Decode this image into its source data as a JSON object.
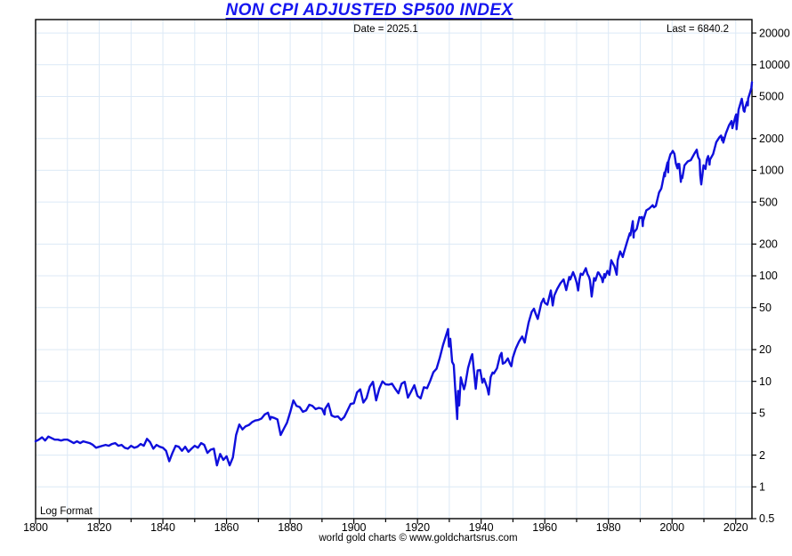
{
  "colors": {
    "line": "#0f0fdc",
    "title": "#1616f0",
    "grid": "#dce9f6",
    "axis": "#000000",
    "background": "#ffffff",
    "text": "#000000"
  },
  "chart_data": {
    "type": "line",
    "title": "NON CPI ADJUSTED SP500 INDEX",
    "date_label": "Date = 2025.1",
    "last_label": "Last = 6840.2",
    "scale_label": "Log Format",
    "caption": "world gold charts © www.goldchartsrus.com",
    "last_date": 2025.1,
    "last_value": 6840.2,
    "grid": true,
    "legend": false,
    "x_axis": {
      "range": [
        1800,
        2025.1
      ],
      "major_tick_interval": 20,
      "minor_tick_interval": 10,
      "major_ticks": [
        1800,
        1820,
        1840,
        1860,
        1880,
        1900,
        1920,
        1940,
        1960,
        1980,
        2000,
        2020
      ]
    },
    "y_axis": {
      "scale": "log",
      "range": [
        0.5,
        26800
      ],
      "ticks": [
        0.5,
        1,
        2,
        5,
        10,
        20,
        50,
        100,
        200,
        500,
        1000,
        2000,
        5000,
        10000,
        20000
      ]
    },
    "series": [
      {
        "name": "SP500",
        "color": "#0f0fdc",
        "points": [
          [
            1800,
            2.7
          ],
          [
            1801,
            2.8
          ],
          [
            1802,
            2.95
          ],
          [
            1803,
            2.75
          ],
          [
            1804,
            3.0
          ],
          [
            1805,
            2.9
          ],
          [
            1806,
            2.8
          ],
          [
            1807,
            2.8
          ],
          [
            1808,
            2.75
          ],
          [
            1809,
            2.8
          ],
          [
            1810,
            2.8
          ],
          [
            1811,
            2.7
          ],
          [
            1812,
            2.6
          ],
          [
            1813,
            2.7
          ],
          [
            1814,
            2.6
          ],
          [
            1815,
            2.7
          ],
          [
            1816,
            2.65
          ],
          [
            1817,
            2.6
          ],
          [
            1818,
            2.5
          ],
          [
            1819,
            2.35
          ],
          [
            1820,
            2.4
          ],
          [
            1821,
            2.45
          ],
          [
            1822,
            2.5
          ],
          [
            1823,
            2.45
          ],
          [
            1824,
            2.55
          ],
          [
            1825,
            2.6
          ],
          [
            1826,
            2.45
          ],
          [
            1827,
            2.5
          ],
          [
            1828,
            2.35
          ],
          [
            1829,
            2.3
          ],
          [
            1830,
            2.45
          ],
          [
            1831,
            2.35
          ],
          [
            1832,
            2.4
          ],
          [
            1833,
            2.55
          ],
          [
            1834,
            2.45
          ],
          [
            1835,
            2.85
          ],
          [
            1836,
            2.65
          ],
          [
            1837,
            2.3
          ],
          [
            1838,
            2.5
          ],
          [
            1839,
            2.4
          ],
          [
            1840,
            2.35
          ],
          [
            1841,
            2.2
          ],
          [
            1842,
            1.75
          ],
          [
            1843,
            2.1
          ],
          [
            1844,
            2.45
          ],
          [
            1845,
            2.4
          ],
          [
            1846,
            2.2
          ],
          [
            1847,
            2.4
          ],
          [
            1848,
            2.15
          ],
          [
            1849,
            2.3
          ],
          [
            1850,
            2.45
          ],
          [
            1851,
            2.35
          ],
          [
            1852,
            2.6
          ],
          [
            1853,
            2.5
          ],
          [
            1854,
            2.1
          ],
          [
            1855,
            2.25
          ],
          [
            1856,
            2.3
          ],
          [
            1857,
            1.6
          ],
          [
            1858,
            2.05
          ],
          [
            1859,
            1.8
          ],
          [
            1860,
            1.95
          ],
          [
            1861,
            1.6
          ],
          [
            1862,
            1.9
          ],
          [
            1863,
            3.1
          ],
          [
            1864,
            3.9
          ],
          [
            1865,
            3.5
          ],
          [
            1866,
            3.75
          ],
          [
            1867,
            3.85
          ],
          [
            1868,
            4.1
          ],
          [
            1869,
            4.25
          ],
          [
            1870,
            4.3
          ],
          [
            1871,
            4.45
          ],
          [
            1872,
            4.85
          ],
          [
            1873,
            5.05
          ],
          [
            1873.7,
            4.35
          ],
          [
            1874,
            4.6
          ],
          [
            1875,
            4.5
          ],
          [
            1876,
            4.35
          ],
          [
            1877,
            3.1
          ],
          [
            1878,
            3.55
          ],
          [
            1879,
            4.05
          ],
          [
            1880,
            5.1
          ],
          [
            1881,
            6.6
          ],
          [
            1882,
            5.85
          ],
          [
            1883,
            5.7
          ],
          [
            1884,
            5.15
          ],
          [
            1885,
            5.3
          ],
          [
            1886,
            6.0
          ],
          [
            1887,
            5.85
          ],
          [
            1888,
            5.45
          ],
          [
            1889,
            5.6
          ],
          [
            1890,
            5.5
          ],
          [
            1890.8,
            4.85
          ],
          [
            1891,
            5.5
          ],
          [
            1892,
            6.15
          ],
          [
            1893,
            4.75
          ],
          [
            1894,
            4.6
          ],
          [
            1895,
            4.65
          ],
          [
            1896,
            4.3
          ],
          [
            1897,
            4.6
          ],
          [
            1898,
            5.3
          ],
          [
            1899,
            6.1
          ],
          [
            1900,
            6.2
          ],
          [
            1901,
            7.85
          ],
          [
            1902,
            8.4
          ],
          [
            1903,
            6.3
          ],
          [
            1904,
            6.95
          ],
          [
            1905,
            8.9
          ],
          [
            1906,
            9.9
          ],
          [
            1907,
            6.6
          ],
          [
            1908,
            8.5
          ],
          [
            1909,
            10.0
          ],
          [
            1910,
            9.35
          ],
          [
            1911,
            9.3
          ],
          [
            1912,
            9.5
          ],
          [
            1913,
            8.5
          ],
          [
            1914,
            7.7
          ],
          [
            1915,
            9.5
          ],
          [
            1916,
            9.9
          ],
          [
            1917,
            7.0
          ],
          [
            1918,
            8.0
          ],
          [
            1919,
            9.2
          ],
          [
            1920,
            7.3
          ],
          [
            1921,
            6.9
          ],
          [
            1922,
            8.8
          ],
          [
            1923,
            8.6
          ],
          [
            1924,
            10.1
          ],
          [
            1925,
            12.2
          ],
          [
            1926,
            13.2
          ],
          [
            1927,
            16.7
          ],
          [
            1928,
            22.0
          ],
          [
            1929.6,
            31.3
          ],
          [
            1929.9,
            21.4
          ],
          [
            1930.3,
            25.3
          ],
          [
            1930.9,
            15.3
          ],
          [
            1931.4,
            14.3
          ],
          [
            1931.9,
            8.1
          ],
          [
            1932.5,
            4.4
          ],
          [
            1932.75,
            8.1
          ],
          [
            1933.1,
            5.9
          ],
          [
            1933.6,
            10.9
          ],
          [
            1934,
            9.8
          ],
          [
            1934.6,
            8.4
          ],
          [
            1935,
            9.3
          ],
          [
            1935.9,
            13.4
          ],
          [
            1936.9,
            17.2
          ],
          [
            1937.2,
            18.1
          ],
          [
            1938.3,
            8.5
          ],
          [
            1938.9,
            12.7
          ],
          [
            1939.7,
            12.8
          ],
          [
            1940.4,
            9.7
          ],
          [
            1940.9,
            10.6
          ],
          [
            1941.9,
            8.7
          ],
          [
            1942.4,
            7.5
          ],
          [
            1943,
            11.0
          ],
          [
            1943.6,
            12.1
          ],
          [
            1944,
            11.9
          ],
          [
            1945,
            13.3
          ],
          [
            1945.9,
            17.4
          ],
          [
            1946.4,
            18.6
          ],
          [
            1946.8,
            14.7
          ],
          [
            1947.5,
            15.1
          ],
          [
            1948.4,
            16.5
          ],
          [
            1949,
            14.8
          ],
          [
            1949.5,
            13.9
          ],
          [
            1950,
            16.9
          ],
          [
            1950.9,
            20.4
          ],
          [
            1951.9,
            23.8
          ],
          [
            1952.9,
            26.6
          ],
          [
            1953.7,
            23.3
          ],
          [
            1954,
            26.1
          ],
          [
            1954.9,
            36.0
          ],
          [
            1955.9,
            45.5
          ],
          [
            1956.6,
            48.8
          ],
          [
            1957,
            44.7
          ],
          [
            1957.8,
            39.0
          ],
          [
            1958.9,
            55.2
          ],
          [
            1959.6,
            60.7
          ],
          [
            1960,
            55.6
          ],
          [
            1960.8,
            53.3
          ],
          [
            1961.9,
            72.6
          ],
          [
            1962.5,
            52.3
          ],
          [
            1963,
            65.1
          ],
          [
            1963.9,
            75.0
          ],
          [
            1964.9,
            84.8
          ],
          [
            1965.9,
            92.4
          ],
          [
            1966.75,
            73.2
          ],
          [
            1967.7,
            97.6
          ],
          [
            1968,
            92.2
          ],
          [
            1968.9,
            108.4
          ],
          [
            1969.5,
            97.0
          ],
          [
            1970,
            86.2
          ],
          [
            1970.5,
            72.7
          ],
          [
            1970.9,
            92.2
          ],
          [
            1971.3,
            104.8
          ],
          [
            1971.9,
            102.1
          ],
          [
            1972.9,
            118.1
          ],
          [
            1973.4,
            104.3
          ],
          [
            1973.9,
            97.6
          ],
          [
            1974.2,
            90.3
          ],
          [
            1974.75,
            63.5
          ],
          [
            1975.5,
            95.2
          ],
          [
            1975.9,
            90.2
          ],
          [
            1976.7,
            107.8
          ],
          [
            1976.9,
            107.5
          ],
          [
            1977.9,
            95.1
          ],
          [
            1978.2,
            87.0
          ],
          [
            1978.7,
            103.9
          ],
          [
            1978.9,
            96.1
          ],
          [
            1979.7,
            111.3
          ],
          [
            1979.9,
            107.9
          ],
          [
            1980.3,
            102.1
          ],
          [
            1980.9,
            140.5
          ],
          [
            1981.9,
            122.6
          ],
          [
            1982.6,
            102.4
          ],
          [
            1982.9,
            140.6
          ],
          [
            1983.7,
            170.4
          ],
          [
            1983.9,
            164.9
          ],
          [
            1984.5,
            150.6
          ],
          [
            1984.9,
            167.2
          ],
          [
            1985.9,
            211.3
          ],
          [
            1986.7,
            252.9
          ],
          [
            1986.9,
            242.2
          ],
          [
            1987.65,
            329.8
          ],
          [
            1987.9,
            230.3
          ],
          [
            1988,
            257.1
          ],
          [
            1988.9,
            277.7
          ],
          [
            1989.75,
            359.8
          ],
          [
            1989.9,
            353.4
          ],
          [
            1990.55,
            361.2
          ],
          [
            1990.8,
            295.5
          ],
          [
            1990.9,
            330.2
          ],
          [
            1991.9,
            417.1
          ],
          [
            1992.9,
            435.7
          ],
          [
            1993.9,
            466.5
          ],
          [
            1994.3,
            445.8
          ],
          [
            1994.9,
            459.3
          ],
          [
            1995.9,
            615.9
          ],
          [
            1996.6,
            670.6
          ],
          [
            1996.9,
            740.7
          ],
          [
            1997.6,
            954.3
          ],
          [
            1997.75,
            876.0
          ],
          [
            1997.9,
            970.4
          ],
          [
            1998.55,
            1186.8
          ],
          [
            1998.75,
            957.3
          ],
          [
            1998.9,
            1229.2
          ],
          [
            1999.5,
            1418.8
          ],
          [
            1999.9,
            1469.3
          ],
          [
            2000.2,
            1527.5
          ],
          [
            2000.75,
            1430.8
          ],
          [
            2000.9,
            1320.3
          ],
          [
            2001.2,
            1160.3
          ],
          [
            2001.7,
            1040.9
          ],
          [
            2001.9,
            1148.1
          ],
          [
            2002.25,
            1147.4
          ],
          [
            2002.75,
            776.8
          ],
          [
            2002.9,
            879.8
          ],
          [
            2003.2,
            841.2
          ],
          [
            2003.9,
            1111.9
          ],
          [
            2004.9,
            1211.9
          ],
          [
            2005.9,
            1248.3
          ],
          [
            2006.9,
            1418.3
          ],
          [
            2007.75,
            1565.2
          ],
          [
            2007.9,
            1468.4
          ],
          [
            2008.2,
            1330.6
          ],
          [
            2008.65,
            1255.1
          ],
          [
            2008.85,
            896.2
          ],
          [
            2009.15,
            735.1
          ],
          [
            2009.9,
            1115.1
          ],
          [
            2010.5,
            1030.7
          ],
          [
            2010.9,
            1257.6
          ],
          [
            2011.35,
            1363.6
          ],
          [
            2011.75,
            1131.4
          ],
          [
            2011.9,
            1257.6
          ],
          [
            2012.9,
            1426.2
          ],
          [
            2013.9,
            1848.4
          ],
          [
            2014.9,
            2058.9
          ],
          [
            2015.4,
            2130.8
          ],
          [
            2015.7,
            1920.0
          ],
          [
            2015.9,
            2043.9
          ],
          [
            2016.1,
            1829.1
          ],
          [
            2016.9,
            2238.8
          ],
          [
            2017.9,
            2673.6
          ],
          [
            2018.7,
            2930.8
          ],
          [
            2018.95,
            2506.9
          ],
          [
            2019.9,
            3230.8
          ],
          [
            2020.15,
            3386.2
          ],
          [
            2020.25,
            2447.0
          ],
          [
            2020.9,
            3756.1
          ],
          [
            2021.9,
            4766.2
          ],
          [
            2022.5,
            3666.8
          ],
          [
            2022.75,
            3585.6
          ],
          [
            2022.9,
            3839.5
          ],
          [
            2023.55,
            4450.3
          ],
          [
            2023.8,
            4117.4
          ],
          [
            2023.9,
            4769.8
          ],
          [
            2024.5,
            5460.5
          ],
          [
            2024.9,
            6032.4
          ],
          [
            2025.1,
            6840.2
          ]
        ]
      }
    ]
  }
}
